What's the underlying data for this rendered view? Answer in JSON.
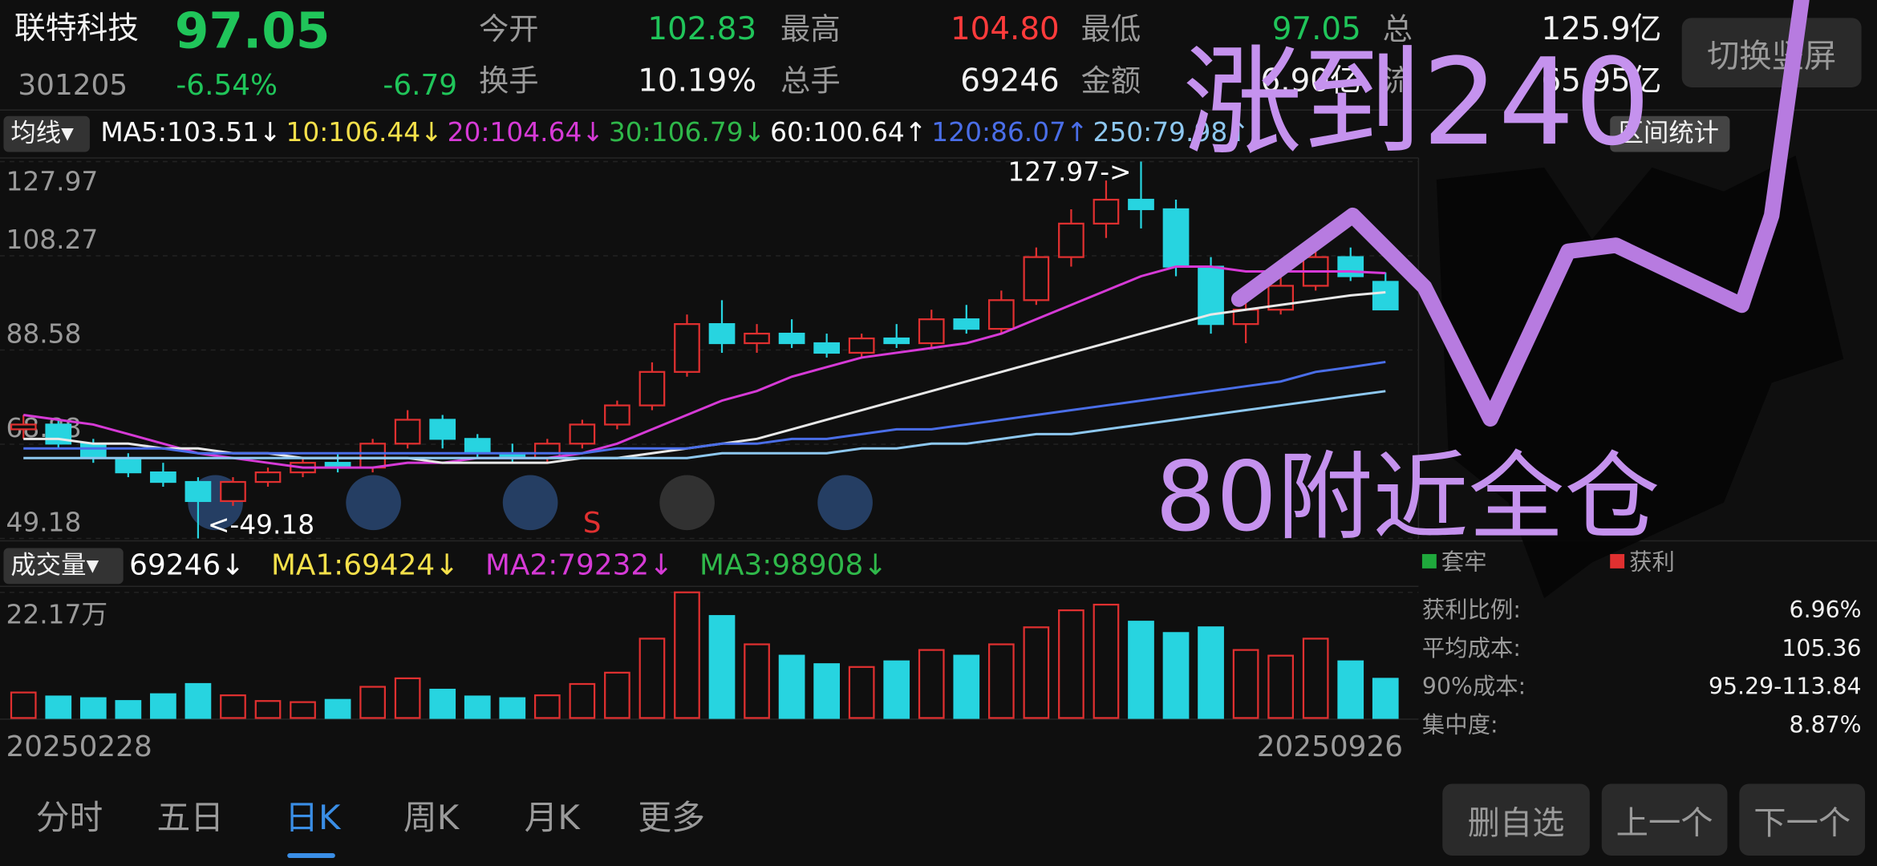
{
  "header": {
    "name": "联特科技",
    "price": "97.05",
    "code": "301205",
    "change_pct": "-6.54%",
    "change": "-6.79",
    "switch_button": "切换竖屏"
  },
  "quote": [
    {
      "label": "今开",
      "value": "102.83"
    },
    {
      "label": "最高",
      "value": "104.80"
    },
    {
      "label": "最低",
      "value": "97.05"
    },
    {
      "label": "总",
      "value": "125.9亿"
    },
    {
      "label": "换手",
      "value": "10.19%"
    },
    {
      "label": "总手",
      "value": "69246"
    },
    {
      "label": "金额",
      "value": "6.90亿"
    },
    {
      "label": "流",
      "value": "65.95亿"
    }
  ],
  "ma_bar": {
    "label": "均线▾",
    "range_tab": "区间统计",
    "items": [
      {
        "text": "MA5:103.51↓",
        "color": "#ffffff"
      },
      {
        "text": "10:106.44↓",
        "color": "#f5e04a"
      },
      {
        "text": "20:104.64↓",
        "color": "#d63ad6"
      },
      {
        "text": "30:106.79↓",
        "color": "#2fb84a"
      },
      {
        "text": "60:100.64↑",
        "color": "#ffffff"
      },
      {
        "text": "120:86.07↑",
        "color": "#4a6ee8"
      },
      {
        "text": "250:79.98↑",
        "color": "#8ec8f0"
      }
    ]
  },
  "volume_bar": {
    "label": "成交量▾",
    "items": [
      {
        "text": "69246↓",
        "color": "#ffffff"
      },
      {
        "text": "MA1:69424↓",
        "color": "#f5e04a"
      },
      {
        "text": "MA2:79232↓",
        "color": "#d63ad6"
      },
      {
        "text": "MA3:98908↓",
        "color": "#2fb84a"
      }
    ]
  },
  "chart_data": {
    "type": "candlestick",
    "categories": [
      "20250228",
      null,
      null,
      null,
      null,
      null,
      null,
      null,
      null,
      null,
      null,
      null,
      null,
      null,
      null,
      null,
      null,
      null,
      null,
      null,
      null,
      null,
      null,
      null,
      null,
      null,
      null,
      null,
      null,
      null,
      null,
      null,
      null,
      null,
      null,
      null,
      null,
      null,
      null,
      "20250926"
    ],
    "open": [
      72,
      73,
      69,
      66,
      63,
      61,
      57,
      61,
      63,
      65,
      64,
      69,
      74,
      70,
      67,
      66,
      69,
      73,
      77,
      84,
      94,
      90,
      92,
      90,
      88,
      91,
      90,
      95,
      93,
      99,
      108,
      115,
      120,
      118,
      106,
      94,
      97,
      102,
      108,
      102.83
    ],
    "high": [
      75,
      74,
      70,
      67,
      65,
      62,
      62,
      64,
      66,
      67,
      70,
      76,
      75,
      71,
      69,
      70,
      74,
      78,
      86,
      96,
      99,
      94,
      95,
      92,
      92,
      94,
      97,
      98,
      101,
      110,
      118,
      124,
      127.97,
      120,
      108,
      99,
      104,
      110,
      110,
      104.8
    ],
    "low": [
      70,
      68,
      65,
      62,
      60,
      49.18,
      56,
      60,
      62,
      63,
      63,
      68,
      68,
      66,
      65,
      65,
      68,
      72,
      76,
      83,
      88,
      88,
      89,
      87,
      87,
      89,
      89,
      92,
      92,
      98,
      106,
      112,
      114,
      104,
      92,
      90,
      96,
      101,
      103,
      97.05
    ],
    "close": [
      73,
      69,
      66,
      63,
      61,
      57,
      61,
      63,
      65,
      64,
      69,
      74,
      70,
      67,
      66,
      69,
      73,
      77,
      84,
      94,
      90,
      92,
      90,
      88,
      91,
      90,
      95,
      93,
      99,
      108,
      115,
      120,
      118,
      106,
      94,
      97,
      102,
      108,
      104,
      97.05
    ],
    "volume": [
      45000,
      38000,
      35000,
      30000,
      42000,
      60000,
      40000,
      30000,
      28000,
      32000,
      55000,
      70000,
      50000,
      38000,
      35000,
      40000,
      60000,
      80000,
      140000,
      221700,
      180000,
      130000,
      110000,
      95000,
      90000,
      100000,
      120000,
      110000,
      130000,
      160000,
      190000,
      200000,
      170000,
      150000,
      160000,
      120000,
      110000,
      140000,
      100000,
      69246
    ],
    "ma": [
      {
        "color": "#d63ad6",
        "values": [
          75,
          74,
          73,
          71,
          69,
          67,
          66,
          65,
          64,
          64,
          64,
          65,
          65,
          66,
          66,
          66,
          67,
          69,
          72,
          75,
          78,
          80,
          83,
          85,
          87,
          88,
          89,
          90,
          92,
          95,
          98,
          101,
          104,
          106,
          106,
          105,
          105,
          105,
          105,
          104.64
        ]
      },
      {
        "color": "#e8e8e8",
        "values": [
          70,
          70,
          69,
          69,
          68,
          68,
          67,
          67,
          66,
          66,
          66,
          66,
          65,
          65,
          65,
          65,
          66,
          66,
          67,
          68,
          69,
          70,
          72,
          74,
          76,
          78,
          80,
          82,
          84,
          86,
          88,
          90,
          92,
          94,
          96,
          97,
          98,
          99,
          100,
          100.64
        ]
      },
      {
        "color": "#4a6ee8",
        "values": [
          68,
          68,
          68,
          68,
          68,
          67,
          67,
          67,
          67,
          67,
          67,
          67,
          67,
          67,
          67,
          67,
          67,
          68,
          68,
          68,
          69,
          69,
          70,
          70,
          71,
          72,
          72,
          73,
          74,
          75,
          76,
          77,
          78,
          79,
          80,
          81,
          82,
          84,
          85,
          86.07
        ]
      },
      {
        "color": "#8ec8f0",
        "values": [
          66,
          66,
          66,
          66,
          66,
          66,
          66,
          66,
          66,
          66,
          66,
          66,
          66,
          66,
          66,
          66,
          66,
          66,
          66,
          66,
          67,
          67,
          67,
          67,
          68,
          68,
          69,
          69,
          70,
          71,
          71,
          72,
          73,
          74,
          75,
          76,
          77,
          78,
          79,
          79.98
        ]
      }
    ],
    "up_color": "#e03030",
    "down_color": "#27d4e0",
    "ylim": [
      49.18,
      127.97
    ],
    "yticks": [
      127.97,
      108.27,
      88.58,
      68.88,
      49.18
    ],
    "vol_ylim": [
      0,
      221700
    ],
    "vol_yticks": [
      {
        "value": 221700,
        "label": "22.17万"
      }
    ],
    "high_label": "127.97->",
    "low_label": "<-49.18",
    "signal": "S"
  },
  "chips": {
    "legend": [
      "套牢",
      "获利"
    ],
    "stats": [
      {
        "label": "获利比例:",
        "value": "6.96%"
      },
      {
        "label": "平均成本:",
        "value": "105.36"
      },
      {
        "label": "90%成本:",
        "value": "95.29-113.84"
      },
      {
        "label": "集中度:",
        "value": "8.87%"
      }
    ]
  },
  "tabs": [
    "分时",
    "五日",
    "日K",
    "周K",
    "月K",
    "更多"
  ],
  "buttons": [
    "删自选",
    "上一个",
    "下一个"
  ],
  "notes": [
    "涨到240",
    "80附近全仓"
  ]
}
